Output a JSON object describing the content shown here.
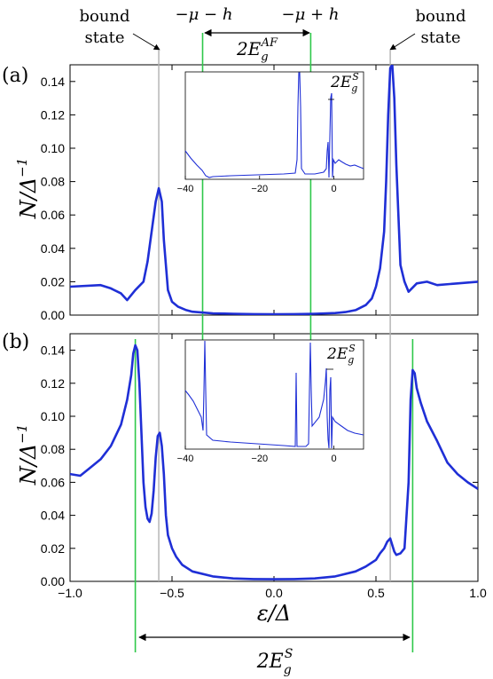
{
  "chart_data": [
    {
      "id": "a",
      "type": "line",
      "panel_label": "(a)",
      "ylabel": "N/Δ⁻¹",
      "xlim": [
        -1.0,
        1.0
      ],
      "ylim": [
        0.0,
        0.15
      ],
      "yticks": [
        "0.00",
        "0.02",
        "0.04",
        "0.06",
        "0.08",
        "0.10",
        "0.12",
        "0.14"
      ],
      "series": [
        {
          "color": "#1f2fd6",
          "x": [
            -1.0,
            -0.85,
            -0.8,
            -0.75,
            -0.72,
            -0.68,
            -0.64,
            -0.62,
            -0.6,
            -0.58,
            -0.565,
            -0.55,
            -0.54,
            -0.52,
            -0.5,
            -0.47,
            -0.43,
            -0.4,
            -0.3,
            -0.2,
            -0.1,
            0.0,
            0.1,
            0.2,
            0.3,
            0.35,
            0.4,
            0.45,
            0.48,
            0.5,
            0.52,
            0.54,
            0.55,
            0.56,
            0.57,
            0.58,
            0.59,
            0.6,
            0.62,
            0.64,
            0.66,
            0.7,
            0.75,
            0.8,
            0.9,
            1.0
          ],
          "y": [
            0.017,
            0.018,
            0.016,
            0.013,
            0.009,
            0.015,
            0.02,
            0.032,
            0.05,
            0.068,
            0.076,
            0.068,
            0.045,
            0.015,
            0.008,
            0.005,
            0.003,
            0.002,
            0.001,
            0.0008,
            0.0006,
            0.0005,
            0.0006,
            0.0008,
            0.0012,
            0.0018,
            0.003,
            0.006,
            0.01,
            0.017,
            0.028,
            0.05,
            0.08,
            0.12,
            0.148,
            0.15,
            0.13,
            0.09,
            0.03,
            0.02,
            0.014,
            0.019,
            0.02,
            0.018,
            0.019,
            0.02
          ]
        }
      ],
      "inset": {
        "xlim": [
          -40,
          8
        ],
        "xticks": [
          "−40",
          "−20",
          "0"
        ],
        "annotation": "2E_g^S"
      }
    },
    {
      "id": "b",
      "type": "line",
      "panel_label": "(b)",
      "ylabel": "N/Δ⁻¹",
      "xlabel": "ε/Δ",
      "xlim": [
        -1.0,
        1.0
      ],
      "ylim": [
        0.0,
        0.15
      ],
      "xticks": [
        "−1.0",
        "−0.5",
        "0.0",
        "0.5",
        "1.0"
      ],
      "yticks": [
        "0.00",
        "0.02",
        "0.04",
        "0.06",
        "0.08",
        "0.10",
        "0.12",
        "0.14"
      ],
      "series": [
        {
          "color": "#1f2fd6",
          "x": [
            -1.0,
            -0.95,
            -0.9,
            -0.85,
            -0.8,
            -0.75,
            -0.72,
            -0.7,
            -0.69,
            -0.68,
            -0.67,
            -0.66,
            -0.65,
            -0.64,
            -0.63,
            -0.62,
            -0.61,
            -0.6,
            -0.59,
            -0.58,
            -0.57,
            -0.56,
            -0.55,
            -0.54,
            -0.53,
            -0.52,
            -0.5,
            -0.48,
            -0.45,
            -0.4,
            -0.3,
            -0.2,
            -0.1,
            0.0,
            0.1,
            0.2,
            0.3,
            0.4,
            0.45,
            0.5,
            0.52,
            0.54,
            0.555,
            0.57,
            0.58,
            0.59,
            0.6,
            0.62,
            0.64,
            0.66,
            0.67,
            0.68,
            0.69,
            0.7,
            0.72,
            0.75,
            0.8,
            0.85,
            0.9,
            0.95,
            1.0
          ],
          "y": [
            0.065,
            0.064,
            0.069,
            0.074,
            0.082,
            0.095,
            0.11,
            0.125,
            0.138,
            0.143,
            0.14,
            0.12,
            0.09,
            0.06,
            0.045,
            0.038,
            0.036,
            0.041,
            0.055,
            0.075,
            0.088,
            0.09,
            0.082,
            0.065,
            0.04,
            0.028,
            0.02,
            0.015,
            0.01,
            0.006,
            0.003,
            0.0018,
            0.0014,
            0.0013,
            0.0014,
            0.0018,
            0.003,
            0.006,
            0.009,
            0.013,
            0.017,
            0.02,
            0.024,
            0.026,
            0.022,
            0.018,
            0.016,
            0.017,
            0.02,
            0.06,
            0.11,
            0.128,
            0.126,
            0.117,
            0.108,
            0.097,
            0.085,
            0.072,
            0.065,
            0.06,
            0.056
          ]
        }
      ],
      "inset": {
        "xlim": [
          -40,
          8
        ],
        "xticks": [
          "−40",
          "−20",
          "0"
        ],
        "annotation": "2E_g^S"
      }
    }
  ],
  "annotations": {
    "bound_state_left": [
      "bound",
      "state"
    ],
    "bound_state_right": [
      "bound",
      "state"
    ],
    "minus_mu_minus_h": "−μ − h",
    "minus_mu_plus_h": "−μ + h",
    "gap_af": "2E_g^AF",
    "gap_s_bottom": "2E_g^S"
  },
  "vertical_lines": {
    "bound_state_x": [
      -0.565,
      0.57
    ],
    "af_gap_x": [
      -0.35,
      0.18
    ],
    "s_gap_x": [
      -0.68,
      0.68
    ]
  },
  "colors": {
    "curve": "#1f2fd6",
    "green_line": "#2ec84a",
    "gray_line": "#b0b0b0"
  }
}
